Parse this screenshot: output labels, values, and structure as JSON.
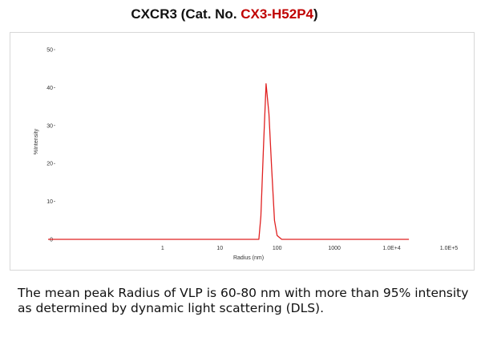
{
  "title": {
    "prefix": "CXCR3  (Cat. No. ",
    "catalog_number": "CX3-H52P4",
    "suffix": ")"
  },
  "caption": "The mean peak Radius of VLP is 60-80 nm with more than 95% intensity as determined by dynamic light scattering (DLS).",
  "colors": {
    "line": "#e02020",
    "catalog_number": "#c00000"
  },
  "chart_data": {
    "type": "line",
    "title": "",
    "xlabel": "Radius (nm)",
    "ylabel": "%Intensity",
    "x_scale": "log",
    "xlim": [
      0.01,
      100000
    ],
    "ylim": [
      0,
      50
    ],
    "x_ticks": [
      {
        "value": 1,
        "label": "1"
      },
      {
        "value": 10,
        "label": "10"
      },
      {
        "value": 100,
        "label": "100"
      },
      {
        "value": 1000,
        "label": "1000"
      },
      {
        "value": 10000,
        "label": "1.0E+4"
      },
      {
        "value": 100000,
        "label": "1.0E+5"
      }
    ],
    "y_ticks": [
      {
        "value": 0,
        "label": "0"
      },
      {
        "value": 10,
        "label": "10"
      },
      {
        "value": 20,
        "label": "20"
      },
      {
        "value": 30,
        "label": "30"
      },
      {
        "value": 40,
        "label": "40"
      },
      {
        "value": 50,
        "label": "50"
      }
    ],
    "grid": false,
    "series": [
      {
        "points": [
          [
            0.01,
            0
          ],
          [
            30,
            0
          ],
          [
            48,
            0
          ],
          [
            52,
            6
          ],
          [
            58,
            25
          ],
          [
            64,
            41
          ],
          [
            72,
            33
          ],
          [
            80,
            19
          ],
          [
            90,
            5
          ],
          [
            100,
            1
          ],
          [
            120,
            0
          ],
          [
            20000,
            0
          ]
        ]
      }
    ]
  }
}
